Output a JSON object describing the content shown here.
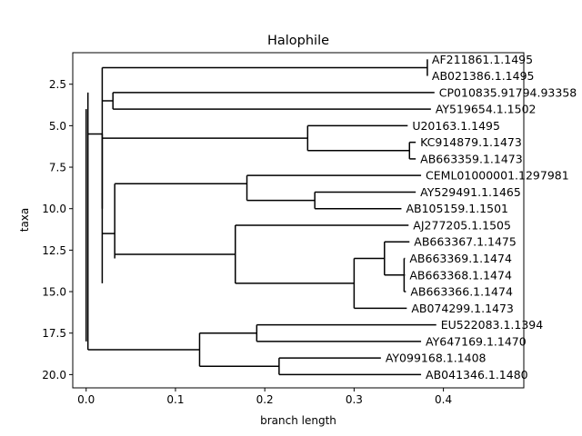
{
  "chart_data": {
    "type": "tree",
    "title": "Halophile",
    "xlabel": "branch length",
    "ylabel": "taxa",
    "xlim": [
      -0.015,
      0.49
    ],
    "ylim": [
      20.8,
      0.6
    ],
    "x_ticks": [
      0.0,
      0.1,
      0.2,
      0.3,
      0.4
    ],
    "x_tick_labels": [
      "0.0",
      "0.1",
      "0.2",
      "0.3",
      "0.4"
    ],
    "y_ticks": [
      2.5,
      5.0,
      7.5,
      10.0,
      12.5,
      15.0,
      17.5,
      20.0
    ],
    "y_tick_labels": [
      "2.5",
      "5.0",
      "7.5",
      "10.0",
      "12.5",
      "15.0",
      "17.5",
      "20.0"
    ],
    "leaves": [
      {
        "label": "AF211861.1.1495",
        "x": 0.382,
        "y": 1
      },
      {
        "label": "AB021386.1.1495",
        "x": 0.382,
        "y": 2
      },
      {
        "label": "CP010835.91794.93358",
        "x": 0.39,
        "y": 3
      },
      {
        "label": "AY519654.1.1502",
        "x": 0.386,
        "y": 4
      },
      {
        "label": "U20163.1.1495",
        "x": 0.36,
        "y": 5
      },
      {
        "label": "KC914879.1.1473",
        "x": 0.369,
        "y": 6
      },
      {
        "label": "AB663359.1.1473",
        "x": 0.369,
        "y": 7
      },
      {
        "label": "CEML01000001.1297981",
        "x": 0.375,
        "y": 8
      },
      {
        "label": "AY529491.1.1465",
        "x": 0.369,
        "y": 9
      },
      {
        "label": "AB105159.1.1501",
        "x": 0.353,
        "y": 10
      },
      {
        "label": "AJ277205.1.1505",
        "x": 0.361,
        "y": 11
      },
      {
        "label": "AB663367.1.1475",
        "x": 0.362,
        "y": 12
      },
      {
        "label": "AB663369.1.1474",
        "x": 0.357,
        "y": 13
      },
      {
        "label": "AB663368.1.1474",
        "x": 0.357,
        "y": 14
      },
      {
        "label": "AB663366.1.1474",
        "x": 0.358,
        "y": 15
      },
      {
        "label": "AB074299.1.1473",
        "x": 0.359,
        "y": 16
      },
      {
        "label": "EU522083.1.1394",
        "x": 0.392,
        "y": 17
      },
      {
        "label": "AY647169.1.1470",
        "x": 0.375,
        "y": 18
      },
      {
        "label": "AY099168.1.1408",
        "x": 0.33,
        "y": 19
      },
      {
        "label": "AB041346.1.1480",
        "x": 0.375,
        "y": 20
      }
    ],
    "internal_nodes": [
      {
        "x": 0.0,
        "y1": 4.0,
        "y2": 18.0
      },
      {
        "x": 0.002,
        "y1": 3.0,
        "y2": 18.5
      },
      {
        "x": 0.018,
        "y1": 1.5,
        "y2": 10.0
      },
      {
        "x": 0.382,
        "y1": 1.0,
        "y2": 2.0
      },
      {
        "x": 0.03,
        "y1": 3.0,
        "y2": 4.0
      },
      {
        "x": 0.018,
        "y1": 5.5,
        "y2": 14.5
      },
      {
        "x": 0.248,
        "y1": 5.0,
        "y2": 6.5
      },
      {
        "x": 0.362,
        "y1": 6.0,
        "y2": 7.0
      },
      {
        "x": 0.032,
        "y1": 8.5,
        "y2": 13.0
      },
      {
        "x": 0.18,
        "y1": 8.0,
        "y2": 9.5
      },
      {
        "x": 0.256,
        "y1": 9.0,
        "y2": 10.0
      },
      {
        "x": 0.167,
        "y1": 11.0,
        "y2": 14.5
      },
      {
        "x": 0.3,
        "y1": 13.0,
        "y2": 16.0
      },
      {
        "x": 0.334,
        "y1": 12.0,
        "y2": 14.0
      },
      {
        "x": 0.356,
        "y1": 13.0,
        "y2": 15.0
      },
      {
        "x": 0.127,
        "y1": 17.5,
        "y2": 19.5
      },
      {
        "x": 0.191,
        "y1": 17.0,
        "y2": 18.0
      },
      {
        "x": 0.216,
        "y1": 19.0,
        "y2": 20.0
      }
    ],
    "branches": [
      {
        "x1": 0.002,
        "x2": 0.018,
        "y": 5.5
      },
      {
        "x1": 0.018,
        "x2": 0.382,
        "y": 1.5
      },
      {
        "x1": 0.382,
        "x2": 0.382,
        "y": 1.0
      },
      {
        "x1": 0.382,
        "x2": 0.382,
        "y": 2.0
      },
      {
        "x1": 0.018,
        "x2": 0.03,
        "y": 3.5
      },
      {
        "x1": 0.03,
        "x2": 0.39,
        "y": 3.0
      },
      {
        "x1": 0.03,
        "x2": 0.386,
        "y": 4.0
      },
      {
        "x1": 0.018,
        "x2": 0.248,
        "y": 5.75
      },
      {
        "x1": 0.248,
        "x2": 0.36,
        "y": 5.0
      },
      {
        "x1": 0.248,
        "x2": 0.362,
        "y": 6.5
      },
      {
        "x1": 0.362,
        "x2": 0.369,
        "y": 6.0
      },
      {
        "x1": 0.362,
        "x2": 0.369,
        "y": 7.0
      },
      {
        "x1": 0.018,
        "x2": 0.032,
        "y": 11.5
      },
      {
        "x1": 0.032,
        "x2": 0.18,
        "y": 8.5
      },
      {
        "x1": 0.18,
        "x2": 0.375,
        "y": 8.0
      },
      {
        "x1": 0.18,
        "x2": 0.256,
        "y": 9.5
      },
      {
        "x1": 0.256,
        "x2": 0.369,
        "y": 9.0
      },
      {
        "x1": 0.256,
        "x2": 0.353,
        "y": 10.0
      },
      {
        "x1": 0.032,
        "x2": 0.167,
        "y": 12.75
      },
      {
        "x1": 0.167,
        "x2": 0.361,
        "y": 11.0
      },
      {
        "x1": 0.167,
        "x2": 0.3,
        "y": 14.5
      },
      {
        "x1": 0.3,
        "x2": 0.334,
        "y": 13.0
      },
      {
        "x1": 0.334,
        "x2": 0.362,
        "y": 12.0
      },
      {
        "x1": 0.334,
        "x2": 0.356,
        "y": 14.0
      },
      {
        "x1": 0.356,
        "x2": 0.357,
        "y": 13.0
      },
      {
        "x1": 0.356,
        "x2": 0.357,
        "y": 14.0
      },
      {
        "x1": 0.356,
        "x2": 0.358,
        "y": 15.0
      },
      {
        "x1": 0.3,
        "x2": 0.359,
        "y": 16.0
      },
      {
        "x1": 0.002,
        "x2": 0.127,
        "y": 18.5
      },
      {
        "x1": 0.127,
        "x2": 0.191,
        "y": 17.5
      },
      {
        "x1": 0.191,
        "x2": 0.392,
        "y": 17.0
      },
      {
        "x1": 0.191,
        "x2": 0.375,
        "y": 18.0
      },
      {
        "x1": 0.127,
        "x2": 0.216,
        "y": 19.5
      },
      {
        "x1": 0.216,
        "x2": 0.33,
        "y": 19.0
      },
      {
        "x1": 0.216,
        "x2": 0.375,
        "y": 20.0
      }
    ],
    "grid": false,
    "line_color": "#000000"
  }
}
